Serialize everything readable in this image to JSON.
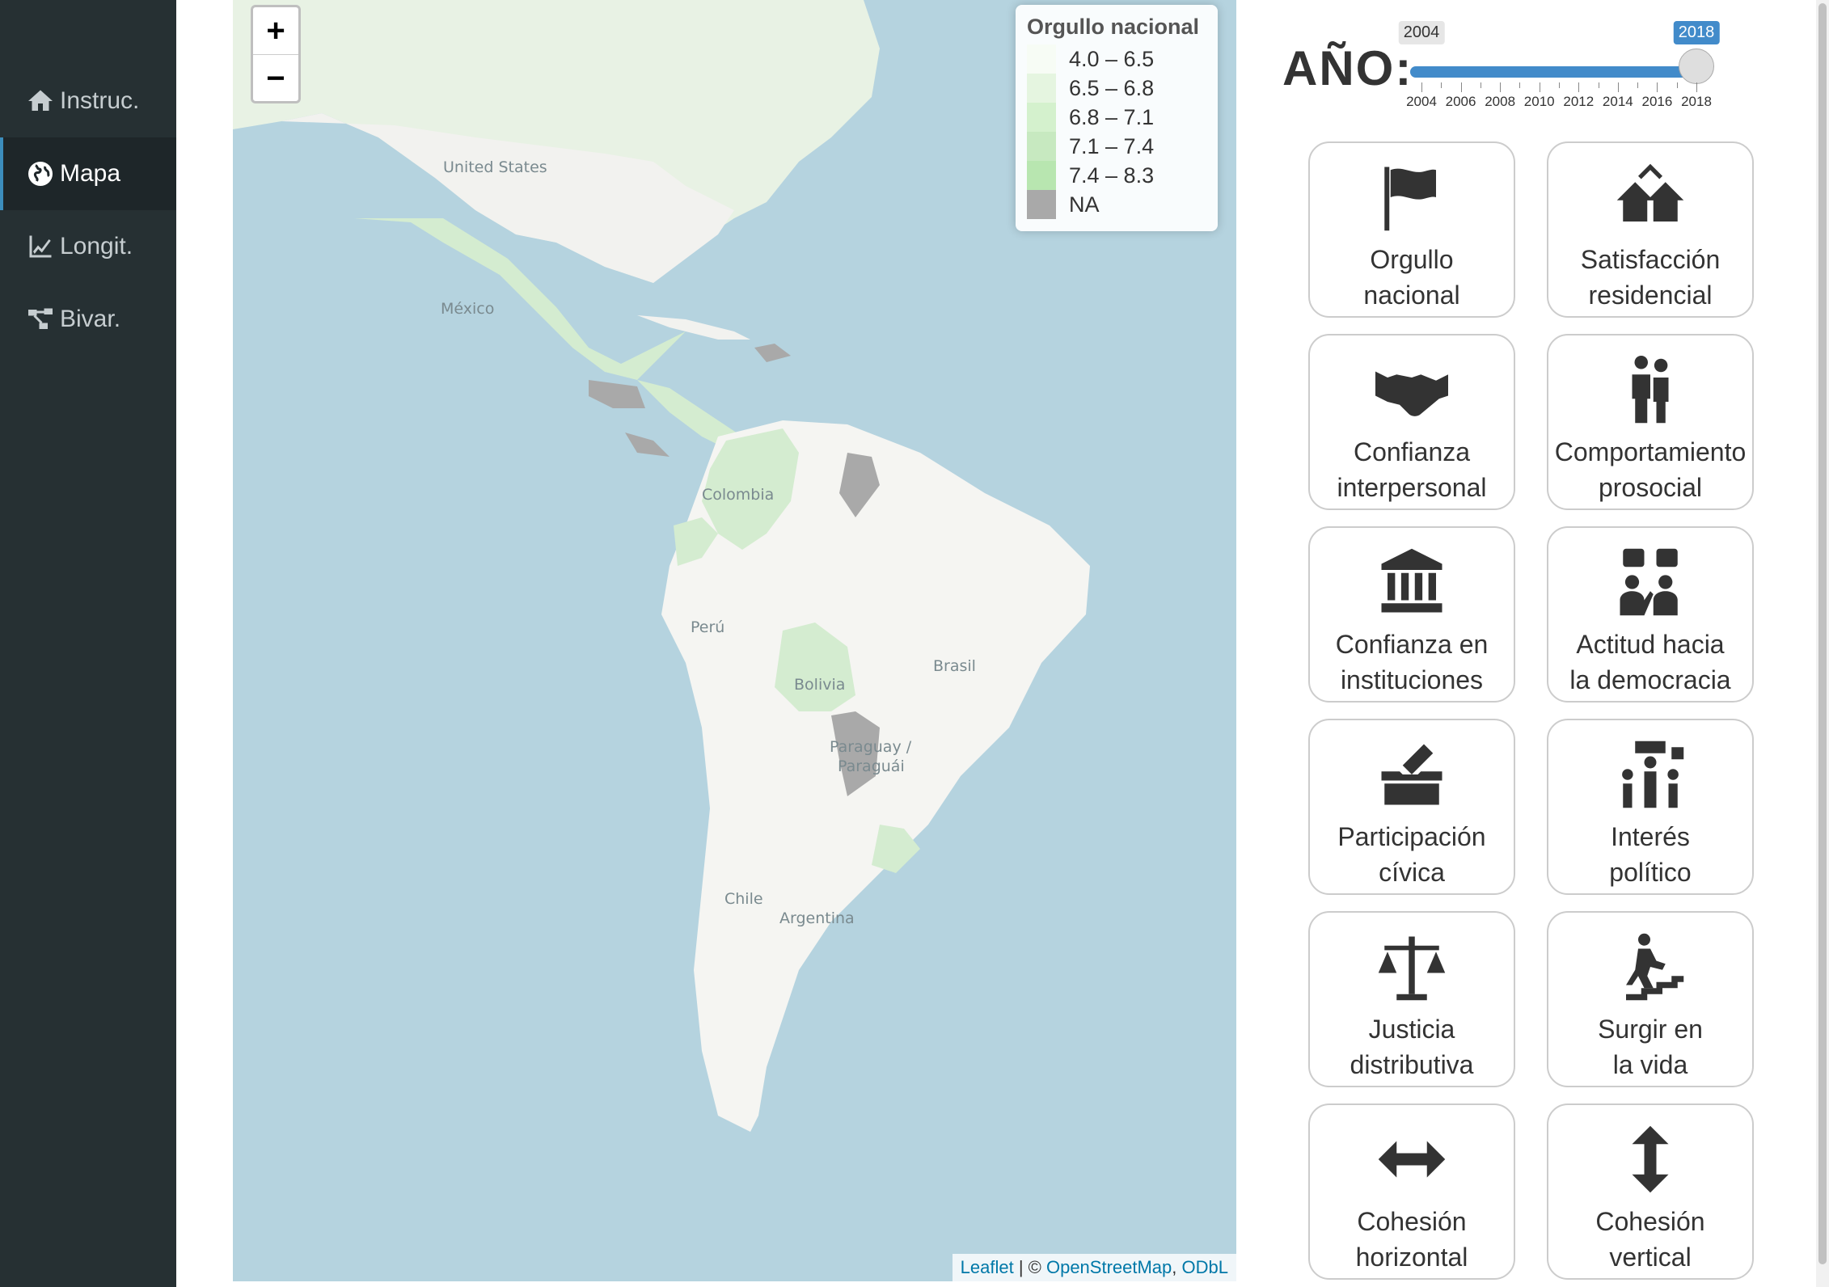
{
  "sidebar": {
    "items": [
      {
        "label": "Instruc.",
        "icon": "home-icon"
      },
      {
        "label": "Mapa",
        "icon": "globe-icon",
        "active": true
      },
      {
        "label": "Longit.",
        "icon": "line-chart-icon"
      },
      {
        "label": "Bivar.",
        "icon": "network-icon"
      }
    ]
  },
  "map": {
    "zoom_in": "+",
    "zoom_out": "−",
    "legend": {
      "title": "Orgullo nacional",
      "entries": [
        {
          "label": "4.0 – 6.5",
          "color": "#f7fcf5"
        },
        {
          "label": "6.5 – 6.8",
          "color": "#e5f5e0"
        },
        {
          "label": "6.8 – 7.1",
          "color": "#d4f1cd"
        },
        {
          "label": "7.1 – 7.4",
          "color": "#c7e9c0"
        },
        {
          "label": "7.4 – 8.3",
          "color": "#b8e6b0"
        },
        {
          "label": "NA",
          "color": "#a9a9a9"
        }
      ]
    },
    "country_labels": [
      "United States",
      "México",
      "Colombia",
      "Perú",
      "Brasil",
      "Bolivia",
      "Paraguay /",
      "Paraguái",
      "Chile",
      "Argentina"
    ],
    "attribution": {
      "leaflet": "Leaflet",
      "sep": " | © ",
      "osm": "OpenStreetMap",
      "comma": ", ",
      "odbl": "ODbL"
    }
  },
  "year": {
    "label": "AÑO:",
    "min_badge": "2004",
    "max_badge": "2018",
    "value": 2018,
    "ticks": [
      "2004",
      "2006",
      "2008",
      "2010",
      "2012",
      "2014",
      "2016",
      "2018"
    ]
  },
  "cards": [
    {
      "icon": "flag-icon",
      "line1": "Orgullo",
      "line2": "nacional"
    },
    {
      "icon": "houses-icon",
      "line1": "Satisfacción",
      "line2": "residencial"
    },
    {
      "icon": "handshake-icon",
      "line1": "Confianza",
      "line2": "interpersonal"
    },
    {
      "icon": "people-helping-icon",
      "line1": "Comportamiento",
      "line2": "prosocial"
    },
    {
      "icon": "institution-icon",
      "line1": "Confianza en",
      "line2": "instituciones"
    },
    {
      "icon": "vote-people-icon",
      "line1": "Actitud hacia",
      "line2": "la democracia"
    },
    {
      "icon": "ballot-box-icon",
      "line1": "Participación",
      "line2": "cívica"
    },
    {
      "icon": "protest-icon",
      "line1": "Interés",
      "line2": "político"
    },
    {
      "icon": "scales-icon",
      "line1": "Justicia",
      "line2": "distributiva"
    },
    {
      "icon": "stairs-climb-icon",
      "line1": "Surgir en",
      "line2": "la vida"
    },
    {
      "icon": "horizontal-arrows-icon",
      "line1": "Cohesión",
      "line2": "horizontal"
    },
    {
      "icon": "vertical-arrows-icon",
      "line1": "Cohesión",
      "line2": "vertical"
    }
  ]
}
